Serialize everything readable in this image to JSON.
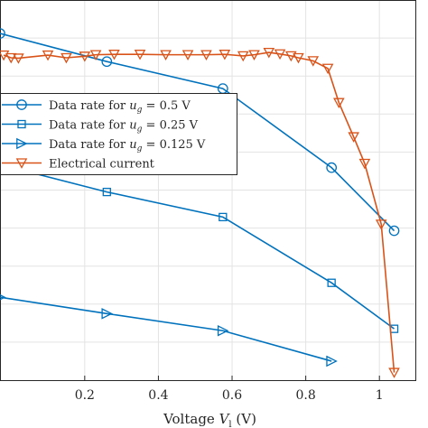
{
  "chart_data": {
    "type": "line",
    "xlabel": "Voltage V_l (V)",
    "xlim": [
      -0.03,
      1.1
    ],
    "ylim": [
      0,
      1
    ],
    "x_ticks": [
      0.2,
      0.4,
      0.6,
      0.8,
      1
    ],
    "x_tick_labels": [
      "0.2",
      "0.4",
      "0.6",
      "0.8",
      "1"
    ],
    "grid": true,
    "legend_position": "center-left",
    "series": [
      {
        "name": "Data rate for u_g = 0.5 V",
        "name_parts": {
          "prefix": "Data rate for ",
          "var": "u",
          "sub": "g",
          "suffix": " = 0.5 V"
        },
        "marker": "circle",
        "color": "#0072BD",
        "x": [
          -0.03,
          0.26,
          0.575,
          0.87,
          1.04
        ],
        "y": [
          0.912,
          0.838,
          0.767,
          0.559,
          0.393
        ]
      },
      {
        "name": "Data rate for u_g = 0.25 V",
        "name_parts": {
          "prefix": "Data rate for ",
          "var": "u",
          "sub": "g",
          "suffix": " = 0.25 V"
        },
        "marker": "square",
        "color": "#0072BD",
        "x": [
          -0.03,
          0.26,
          0.575,
          0.87,
          1.04
        ],
        "y": [
          0.567,
          0.495,
          0.429,
          0.256,
          0.135
        ]
      },
      {
        "name": "Data rate for u_g = 0.125 V",
        "name_parts": {
          "prefix": "Data rate for ",
          "var": "u",
          "sub": "g",
          "suffix": " = 0.125 V"
        },
        "marker": "triangle-right",
        "color": "#0072BD",
        "x": [
          -0.03,
          0.26,
          0.575,
          0.87
        ],
        "y": [
          0.218,
          0.175,
          0.13,
          0.05
        ]
      },
      {
        "name": "Electrical current",
        "name_parts": {
          "prefix": "Electrical current",
          "var": "",
          "sub": "",
          "suffix": ""
        },
        "marker": "triangle-down",
        "color": "#D95319",
        "x": [
          -0.02,
          0.0,
          0.02,
          0.1,
          0.15,
          0.2,
          0.23,
          0.28,
          0.35,
          0.42,
          0.48,
          0.53,
          0.58,
          0.63,
          0.66,
          0.7,
          0.73,
          0.76,
          0.78,
          0.82,
          0.86,
          0.89,
          0.93,
          0.96,
          1.005,
          1.04
        ],
        "y": [
          0.855,
          0.848,
          0.847,
          0.855,
          0.848,
          0.852,
          0.856,
          0.857,
          0.857,
          0.856,
          0.856,
          0.856,
          0.857,
          0.853,
          0.856,
          0.862,
          0.858,
          0.853,
          0.848,
          0.84,
          0.82,
          0.73,
          0.64,
          0.57,
          0.41,
          0.02
        ]
      }
    ]
  }
}
